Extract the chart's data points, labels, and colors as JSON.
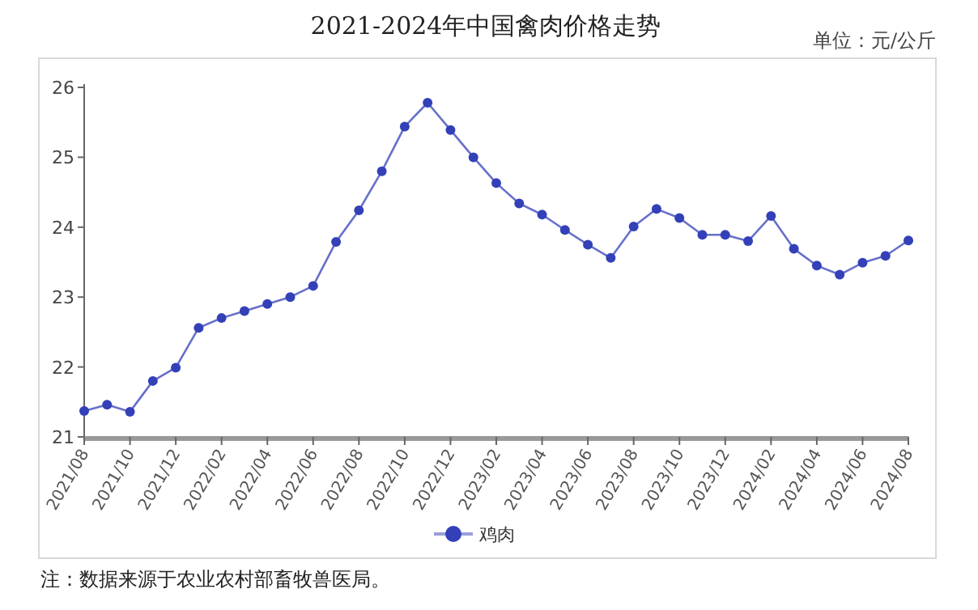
{
  "chart_data": {
    "type": "line",
    "title": "2021-2024年中国禽肉价格走势",
    "annotations": [
      "单位：元/公斤",
      "注：数据来源于农业农村部畜牧兽医局。"
    ],
    "categories": [
      "2021/08",
      null,
      "2021/10",
      null,
      "2021/12",
      null,
      "2022/02",
      null,
      "2022/04",
      null,
      "2022/06",
      null,
      "2022/08",
      null,
      "2022/10",
      null,
      "2022/12",
      null,
      "2023/02",
      null,
      "2023/04",
      null,
      "2023/06",
      null,
      "2023/08",
      null,
      "2023/10",
      null,
      "2023/12",
      null,
      "2024/02",
      null,
      "2024/04",
      null,
      "2024/06",
      null,
      "2024/08"
    ],
    "series": [
      {
        "name": "鸡肉",
        "color": "#3340b8",
        "values": [
          21.37,
          21.46,
          21.36,
          21.8,
          21.99,
          22.56,
          22.7,
          22.8,
          22.9,
          23.0,
          23.16,
          23.79,
          24.24,
          24.8,
          25.44,
          25.78,
          25.39,
          25.0,
          24.63,
          24.34,
          24.18,
          23.96,
          23.75,
          23.56,
          24.01,
          24.26,
          24.13,
          23.89,
          23.89,
          23.8,
          24.16,
          23.69,
          23.45,
          23.32,
          23.49,
          23.59,
          23.81
        ]
      }
    ],
    "ylim": [
      21,
      26
    ],
    "yticks": [
      21,
      22,
      23,
      24,
      25,
      26
    ],
    "grid": false,
    "legend": "bottom",
    "marker": "circle",
    "line_style": "solid"
  }
}
